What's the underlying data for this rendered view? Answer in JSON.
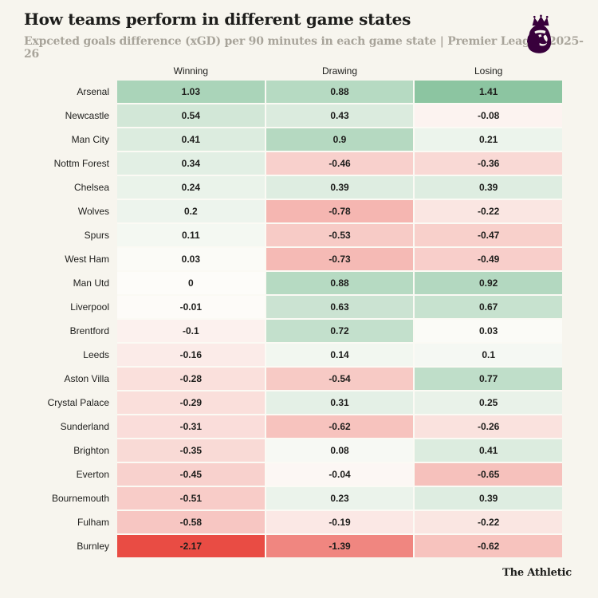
{
  "header": {
    "title": "How teams perform in different game states",
    "subtitle": "Expceted goals difference (xGD) per 90 minutes in each game state | Premier League 2025-26",
    "logo_icon": "premier-league-lion-icon"
  },
  "footer": {
    "brand": "The Athletic"
  },
  "colors": {
    "background": "#f7f5ee",
    "text_dark": "#1d1d1b",
    "text_muted": "#a8a49a",
    "logo_purple": "#38003c",
    "heat_positive_max": "#8cc5a1",
    "heat_zero": "#fdfcf9",
    "heat_negative_max": "#e94c44",
    "cell_grid_lines": "#fbfaf4"
  },
  "chart_data": {
    "type": "heatmap",
    "title": "How teams perform in different game states",
    "subtitle": "Expceted goals difference (xGD) per 90 minutes in each game state | Premier League 2025-26",
    "columns": [
      "Winning",
      "Drawing",
      "Losing"
    ],
    "color_scale": {
      "domain": [
        -2.17,
        0,
        1.41
      ],
      "negative": "#e94c44",
      "zero": "#fdfcf9",
      "positive": "#8cc5a1"
    },
    "rows": [
      {
        "team": "Arsenal",
        "values": [
          1.03,
          0.88,
          1.41
        ]
      },
      {
        "team": "Newcastle",
        "values": [
          0.54,
          0.43,
          -0.08
        ]
      },
      {
        "team": "Man City",
        "values": [
          0.41,
          0.9,
          0.21
        ]
      },
      {
        "team": "Nottm Forest",
        "values": [
          0.34,
          -0.46,
          -0.36
        ]
      },
      {
        "team": "Chelsea",
        "values": [
          0.24,
          0.39,
          0.39
        ]
      },
      {
        "team": "Wolves",
        "values": [
          0.2,
          -0.78,
          -0.22
        ]
      },
      {
        "team": "Spurs",
        "values": [
          0.11,
          -0.53,
          -0.47
        ]
      },
      {
        "team": "West Ham",
        "values": [
          0.03,
          -0.73,
          -0.49
        ]
      },
      {
        "team": "Man Utd",
        "values": [
          0,
          0.88,
          0.92
        ]
      },
      {
        "team": "Liverpool",
        "values": [
          -0.01,
          0.63,
          0.67
        ]
      },
      {
        "team": "Brentford",
        "values": [
          -0.1,
          0.72,
          0.03
        ]
      },
      {
        "team": "Leeds",
        "values": [
          -0.16,
          0.14,
          0.1
        ]
      },
      {
        "team": "Aston Villa",
        "values": [
          -0.28,
          -0.54,
          0.77
        ]
      },
      {
        "team": "Crystal Palace",
        "values": [
          -0.29,
          0.31,
          0.25
        ]
      },
      {
        "team": "Sunderland",
        "values": [
          -0.31,
          -0.62,
          -0.26
        ]
      },
      {
        "team": "Brighton",
        "values": [
          -0.35,
          0.08,
          0.41
        ]
      },
      {
        "team": "Everton",
        "values": [
          -0.45,
          -0.04,
          -0.65
        ]
      },
      {
        "team": "Bournemouth",
        "values": [
          -0.51,
          0.23,
          0.39
        ]
      },
      {
        "team": "Fulham",
        "values": [
          -0.58,
          -0.19,
          -0.22
        ]
      },
      {
        "team": "Burnley",
        "values": [
          -2.17,
          -1.39,
          -0.62
        ]
      }
    ]
  }
}
